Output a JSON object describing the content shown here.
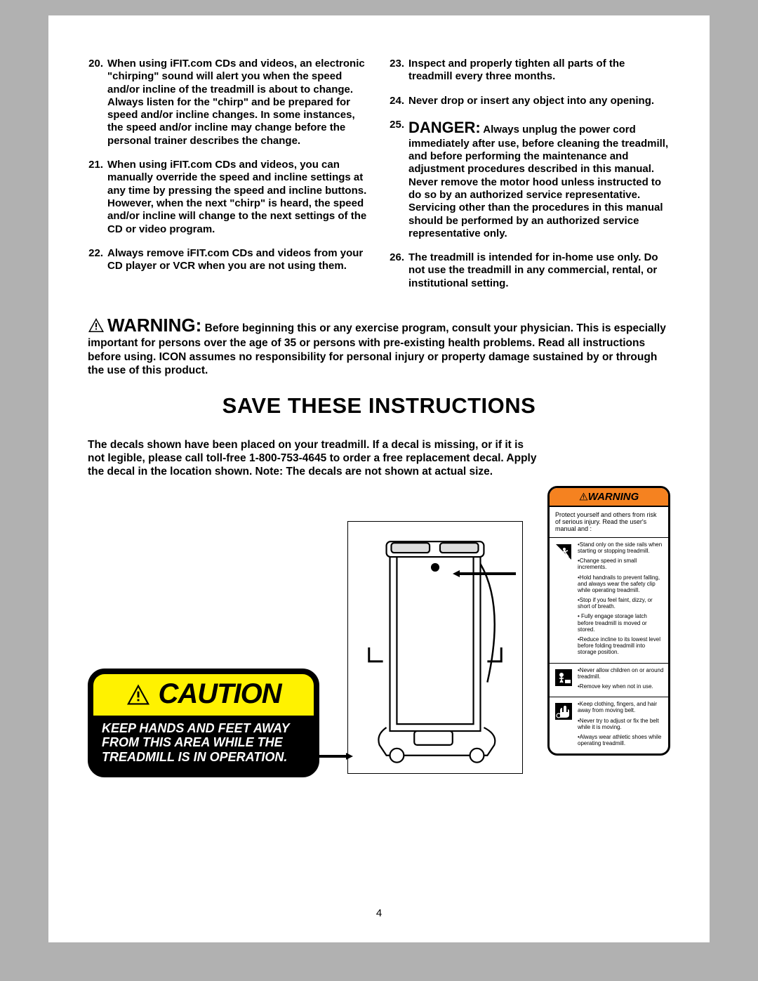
{
  "left_items": [
    {
      "n": "20.",
      "t": "When using iFIT.com CDs and videos, an electronic \"chirping\" sound will alert you when the speed and/or incline of the treadmill is about to change. Always listen for the \"chirp\" and be prepared for speed and/or incline changes. In some instances, the speed and/or incline may change before the personal trainer describes the change."
    },
    {
      "n": "21.",
      "t": "When using iFIT.com CDs and videos, you can manually override the speed and incline settings at any time by pressing the speed and incline buttons. However, when the next \"chirp\" is heard, the speed and/or incline will change to the next settings of the CD or video program."
    },
    {
      "n": "22.",
      "t": "Always remove iFIT.com CDs and videos from your CD player or VCR when you are not using them."
    }
  ],
  "right_items": [
    {
      "n": "23.",
      "t": "Inspect and properly tighten all parts of the treadmill every three months."
    },
    {
      "n": "24.",
      "t": "Never drop or insert any object into any opening."
    },
    {
      "n": "25.",
      "danger": "DANGER:",
      "t": " Always unplug the power cord immediately after use, before cleaning the treadmill, and before performing the maintenance and adjustment procedures described in this manual. Never remove the motor hood unless instructed to do so by an authorized service representative. Servicing other than the procedures in this manual should be performed by an authorized service representative only."
    },
    {
      "n": "26.",
      "t": "The treadmill is intended for in-home use only. Do not use the treadmill in any commercial, rental, or institutional setting."
    }
  ],
  "warning_head": "WARNING:",
  "warning_text": " Before beginning this or any exercise program, consult your physician. This is especially important for persons over the age of 35 or persons with pre-existing health problems. Read all instructions before using. ICON assumes no responsibility for personal injury or property damage sustained by or through the use of this product.",
  "save_title": "SAVE THESE INSTRUCTIONS",
  "decal_text": "The decals shown have been placed on your treadmill. If a decal is missing, or if it is not legible, please call toll-free 1-800-753-4645 to order a free replacement decal. Apply the decal in the location shown. Note: The decals are not shown at actual size.",
  "caution_word": "CAUTION",
  "caution_body": "KEEP HANDS AND FEET AWAY FROM THIS AREA WHILE THE TREADMILL IS IN OPERATION.",
  "wl_head": "WARNING",
  "wl_intro": "Protect yourself and others from risk of serious injury. Read the user's manual and :",
  "wl_sections": [
    {
      "icon": "slip",
      "bullets": [
        "•Stand only on the side rails when starting or stopping treadmill.",
        "•Change speed in small increments.",
        "•Hold handrails to prevent falling, and always wear the safety clip while operating treadmill.",
        "•Stop if you feel faint, dizzy, or short of breath.",
        "• Fully engage storage latch before treadmill is moved or stored.",
        "•Reduce incline to its lowest level before folding treadmill into storage position."
      ]
    },
    {
      "icon": "child",
      "bullets": [
        "•Never allow children on or around treadmill.",
        "•Remove key when not in use."
      ]
    },
    {
      "icon": "hand",
      "bullets": [
        "•Keep clothing, fingers, and hair away from moving belt.",
        "•Never try to adjust or fix the belt while it is moving.",
        "•Always wear athletic shoes while operating treadmill."
      ]
    }
  ],
  "page_number": "4"
}
